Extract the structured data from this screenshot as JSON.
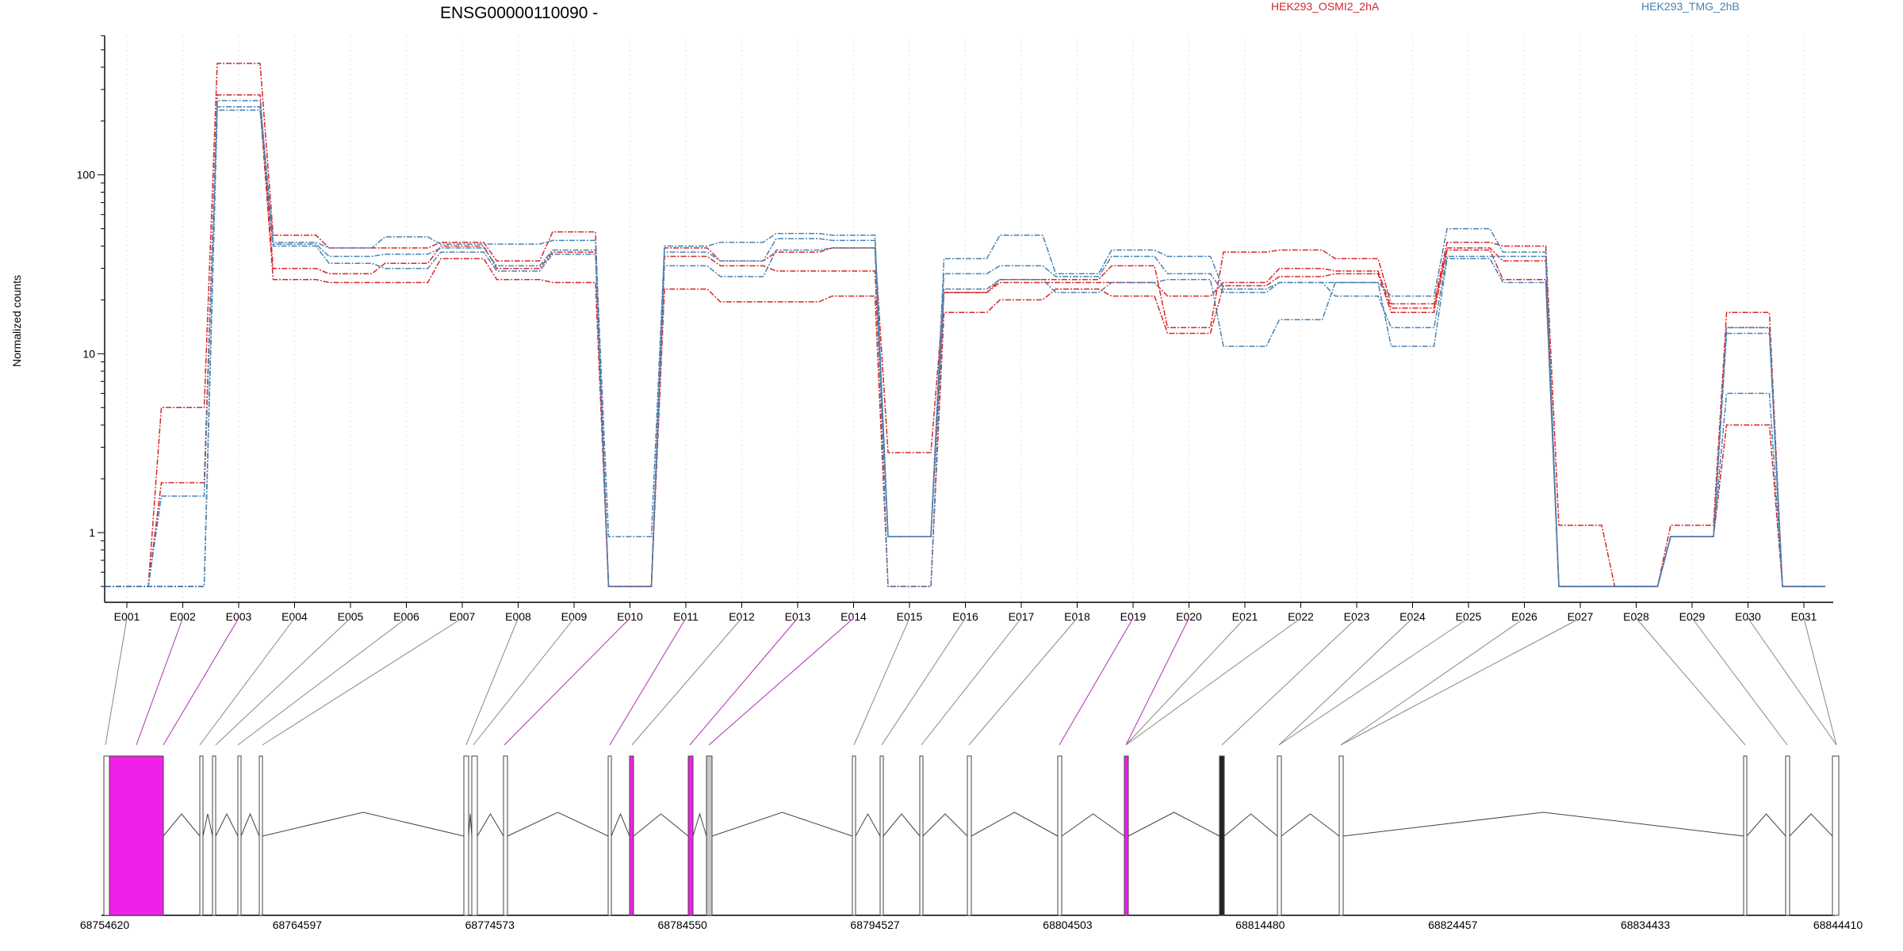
{
  "chart_data": {
    "type": "line",
    "title": "ENSG00000110090 -",
    "ylabel": "Normalized counts",
    "yscale": "log",
    "ylim": [
      0.5,
      600
    ],
    "yticks": [
      {
        "value": 1,
        "label": "1"
      },
      {
        "value": 10,
        "label": "10"
      },
      {
        "value": 100,
        "label": "100"
      }
    ],
    "categories": [
      "E001",
      "E002",
      "E003",
      "E004",
      "E005",
      "E006",
      "E007",
      "E008",
      "E009",
      "E010",
      "E011",
      "E012",
      "E013",
      "E014",
      "E015",
      "E016",
      "E017",
      "E018",
      "E019",
      "E020",
      "E021",
      "E022",
      "E023",
      "E024",
      "E025",
      "E026",
      "E027",
      "E028",
      "E029",
      "E030",
      "E031"
    ],
    "series": [
      {
        "name": "HEK293_OSMI2_2hA",
        "color": "#d62728",
        "values": [
          0.5,
          5.0,
          420,
          46,
          39,
          39,
          42,
          33,
          48,
          0.5,
          39,
          33,
          37,
          39,
          2.8,
          22,
          26,
          26,
          31,
          14,
          37,
          38,
          34,
          19,
          42,
          40,
          1.1,
          0.5,
          1.1,
          17,
          0.5
        ]
      },
      {
        "group": "HEK293_OSMI2_2hA",
        "color": "#d62728",
        "values": [
          0.5,
          1.9,
          280,
          30,
          28,
          32,
          40,
          30,
          37,
          0.5,
          35,
          31,
          29,
          29,
          0.95,
          22,
          25,
          25,
          25,
          21,
          25,
          30,
          29,
          18,
          39,
          33,
          0.5,
          0.5,
          0.95,
          14,
          0.5
        ]
      },
      {
        "group": "HEK293_OSMI2_2hA",
        "color": "#d62728",
        "values": [
          0.5,
          0.5,
          240,
          26,
          25,
          25,
          34,
          26,
          25,
          0.5,
          23,
          19.5,
          19.5,
          21,
          0.5,
          17,
          20,
          23,
          21,
          13,
          24,
          27,
          28,
          17,
          38,
          26,
          0.5,
          0.5,
          0.95,
          4.0,
          0.5
        ]
      },
      {
        "name": "HEK293_TMG_2hB",
        "color": "#4682b4",
        "values": [
          0.5,
          1.6,
          260,
          42,
          39,
          45,
          41,
          41,
          43,
          0.95,
          40,
          42,
          47,
          46,
          0.95,
          34,
          46,
          28,
          38,
          35,
          23,
          25,
          25,
          21,
          50,
          37,
          0.5,
          0.5,
          0.95,
          14,
          0.5
        ]
      },
      {
        "group": "HEK293_TMG_2hB",
        "color": "#4682b4",
        "values": [
          0.5,
          0.5,
          240,
          41,
          35,
          36,
          39,
          31,
          38,
          0.5,
          37,
          33,
          44,
          43,
          0.95,
          28,
          31,
          27,
          35,
          28,
          22,
          25,
          21,
          14,
          35,
          35,
          0.5,
          0.5,
          0.95,
          13,
          0.5
        ]
      },
      {
        "group": "HEK293_TMG_2hB",
        "color": "#4682b4",
        "values": [
          0.5,
          0.5,
          230,
          40,
          32,
          30,
          37,
          29,
          36,
          0.5,
          31,
          27,
          38,
          39,
          0.5,
          23,
          26,
          22,
          25,
          26,
          11,
          15.5,
          25,
          11,
          34,
          25,
          0.5,
          0.5,
          0.95,
          6.0,
          0.5
        ]
      }
    ],
    "legend": [
      {
        "label": "HEK293_OSMI2_2hA",
        "color": "#d62728"
      },
      {
        "label": "HEK293_TMG_2hB",
        "color": "#4682b4"
      }
    ],
    "legend_position": "top",
    "gene_model": {
      "genomic_ticks": [
        "68754620",
        "68764597",
        "68774573",
        "68784550",
        "68794527",
        "68804503",
        "68814480",
        "68824457",
        "68834433",
        "68844410"
      ],
      "highlight_color": "#f020e8",
      "highlighted_exons": [
        "E002",
        "E010",
        "E011",
        "E019"
      ]
    }
  }
}
